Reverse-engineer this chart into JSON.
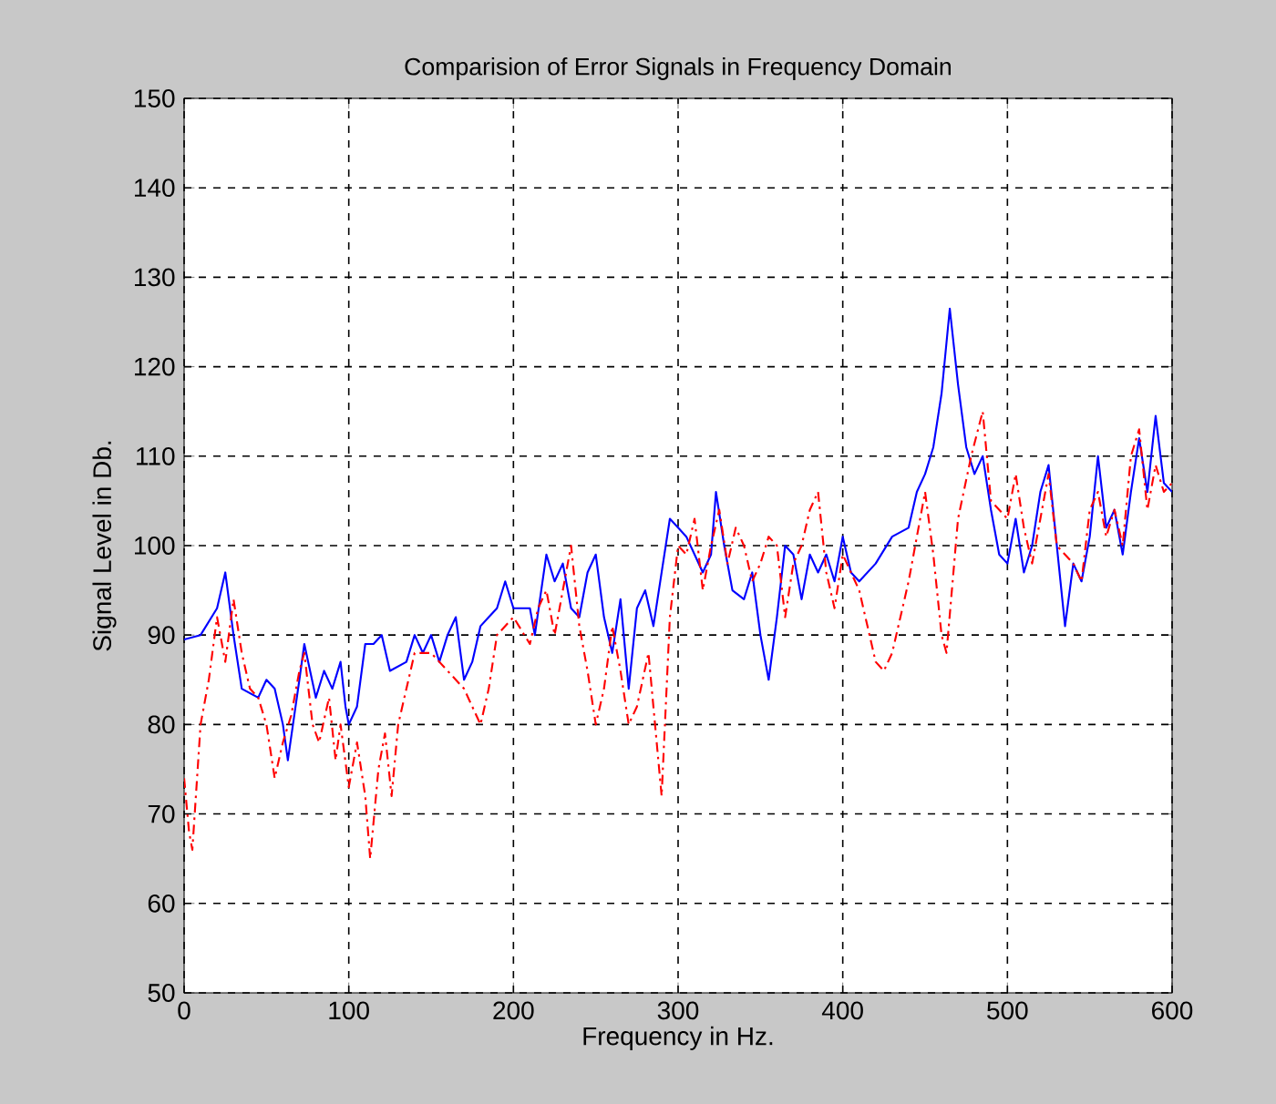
{
  "chart_data": {
    "type": "line",
    "title": "Comparision of Error Signals in Frequency Domain",
    "xlabel": "Frequency in Hz.",
    "ylabel": "Signal Level in Db.",
    "xlim": [
      0,
      600
    ],
    "ylim": [
      50,
      150
    ],
    "xticks": [
      0,
      100,
      200,
      300,
      400,
      500,
      600
    ],
    "yticks": [
      50,
      60,
      70,
      80,
      90,
      100,
      110,
      120,
      130,
      140,
      150
    ],
    "grid": true,
    "marker": "none",
    "series": [
      {
        "color": "#0000ff",
        "line_style": "solid",
        "x": [
          0,
          10,
          20,
          25,
          30,
          35,
          45,
          50,
          55,
          60,
          63,
          70,
          73,
          80,
          85,
          90,
          95,
          98,
          100,
          105,
          110,
          115,
          120,
          125,
          135,
          140,
          145,
          150,
          155,
          160,
          165,
          170,
          175,
          180,
          185,
          190,
          195,
          200,
          205,
          210,
          213,
          220,
          225,
          230,
          235,
          240,
          245,
          250,
          255,
          260,
          265,
          270,
          275,
          280,
          285,
          290,
          295,
          300,
          305,
          310,
          315,
          320,
          323,
          328,
          333,
          340,
          345,
          350,
          355,
          360,
          365,
          370,
          375,
          380,
          385,
          390,
          395,
          400,
          405,
          410,
          420,
          430,
          440,
          445,
          450,
          455,
          460,
          465,
          470,
          475,
          480,
          485,
          490,
          495,
          500,
          505,
          510,
          515,
          520,
          525,
          530,
          535,
          540,
          545,
          550,
          555,
          560,
          565,
          570,
          575,
          580,
          585,
          590,
          595,
          600
        ],
        "values": [
          89.5,
          90,
          93,
          97,
          90,
          84,
          83,
          85,
          84,
          80,
          76,
          85,
          89,
          83,
          86,
          84,
          87,
          82,
          80,
          82,
          89,
          89,
          90,
          86,
          87,
          90,
          88,
          90,
          87,
          90,
          92,
          85,
          87,
          91,
          92,
          93,
          96,
          93,
          93,
          93,
          90,
          99,
          96,
          98,
          93,
          92,
          97,
          99,
          92,
          88,
          94,
          84,
          93,
          95,
          91,
          97,
          103,
          102,
          101,
          99,
          97,
          99,
          106,
          100,
          95,
          94,
          97,
          90,
          85,
          92,
          100,
          99,
          94,
          99,
          97,
          99,
          96,
          101,
          97,
          96,
          98,
          101,
          102,
          106,
          108,
          111,
          117,
          126.5,
          118,
          111,
          108,
          110,
          104,
          99,
          98,
          103,
          97,
          100,
          106,
          109,
          100,
          91,
          98,
          96,
          101,
          110,
          102,
          104,
          99,
          106,
          112,
          106,
          114.5,
          107,
          106
        ]
      },
      {
        "color": "#ff0000",
        "line_style": "dashdot",
        "x": [
          0,
          3,
          5,
          10,
          15,
          20,
          25,
          30,
          35,
          40,
          45,
          50,
          55,
          60,
          65,
          70,
          73,
          78,
          82,
          88,
          92,
          95,
          100,
          105,
          110,
          113,
          118,
          122,
          126,
          130,
          135,
          140,
          150,
          160,
          165,
          170,
          175,
          180,
          185,
          190,
          200,
          210,
          215,
          220,
          225,
          230,
          235,
          240,
          245,
          250,
          255,
          260,
          265,
          270,
          275,
          282,
          287,
          290,
          295,
          300,
          305,
          310,
          315,
          320,
          325,
          330,
          335,
          340,
          345,
          350,
          355,
          360,
          365,
          370,
          375,
          380,
          385,
          390,
          395,
          400,
          410,
          415,
          420,
          425,
          430,
          440,
          450,
          455,
          460,
          463,
          470,
          478,
          485,
          490,
          500,
          505,
          510,
          515,
          520,
          525,
          530,
          535,
          540,
          545,
          550,
          555,
          560,
          565,
          570,
          575,
          580,
          585,
          590,
          595,
          600
        ],
        "values": [
          74,
          68,
          66,
          80,
          85,
          92,
          87,
          94,
          88,
          84,
          83,
          80,
          74,
          78,
          81,
          86,
          88,
          80,
          78,
          83,
          76,
          80,
          73,
          78,
          72,
          65,
          75,
          79,
          72,
          80,
          84,
          88,
          88,
          86,
          85,
          84,
          82,
          80,
          84,
          90,
          92,
          89,
          93,
          95,
          90,
          95,
          100,
          91,
          86,
          80,
          84,
          91,
          86,
          80,
          82,
          88,
          78,
          72,
          92,
          100,
          99,
          103,
          95,
          100,
          104,
          98,
          102,
          100,
          96,
          98,
          101,
          100,
          92,
          98,
          100,
          104,
          106,
          97,
          93,
          99,
          95,
          91,
          87,
          86,
          88,
          96,
          106,
          99,
          90,
          88,
          103,
          110,
          115,
          105,
          103,
          108,
          102,
          98,
          103,
          108,
          100,
          99,
          98,
          96,
          104,
          106,
          101,
          104,
          100,
          110,
          113,
          104,
          109,
          106,
          107
        ]
      }
    ]
  }
}
